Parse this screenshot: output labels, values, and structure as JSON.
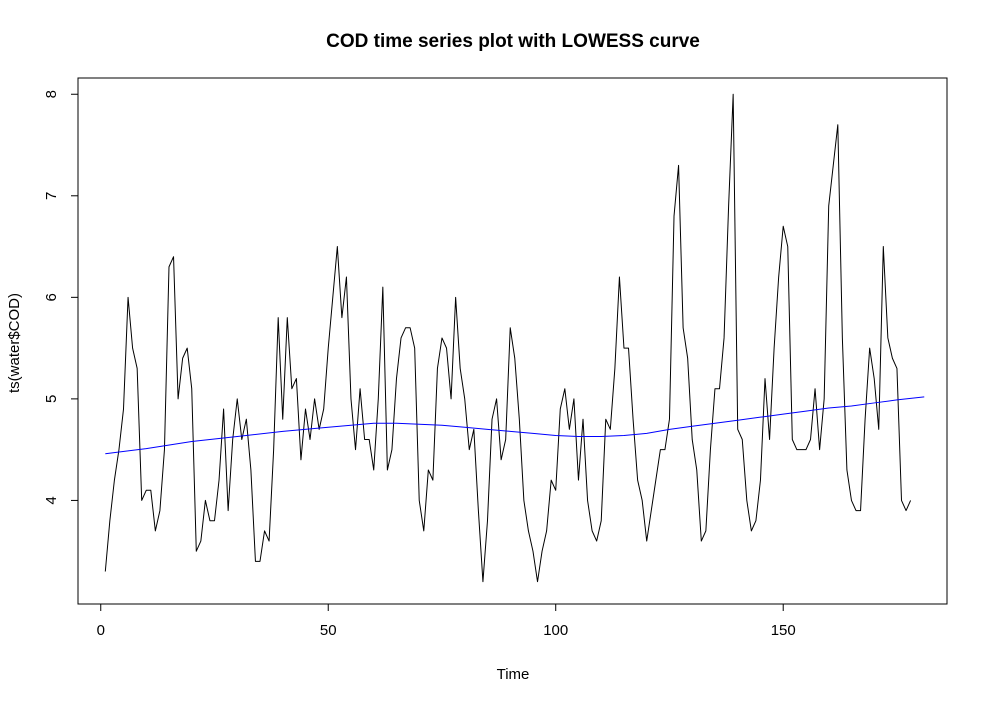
{
  "chart_data": {
    "type": "line",
    "title": "COD time series plot with LOWESS curve",
    "xlabel": "Time",
    "ylabel": "ts(water$COD)",
    "xlim": [
      -5,
      186
    ],
    "ylim": [
      2.98,
      8.16
    ],
    "x_ticks": [
      0,
      50,
      100,
      150
    ],
    "y_ticks": [
      4,
      5,
      6,
      7,
      8
    ],
    "x_tick_labels": [
      "0",
      "50",
      "100",
      "150"
    ],
    "y_tick_labels": [
      "4",
      "5",
      "6",
      "7",
      "8"
    ],
    "grid": false,
    "legend": "none",
    "series": [
      {
        "color": "#000000",
        "x_start": 1,
        "x_step": 1,
        "values": [
          3.3,
          3.8,
          4.2,
          4.5,
          4.9,
          6.0,
          5.5,
          5.3,
          4.0,
          4.1,
          4.1,
          3.7,
          3.9,
          4.5,
          6.3,
          6.4,
          5.0,
          5.4,
          5.5,
          5.1,
          3.5,
          3.6,
          4.0,
          3.8,
          3.8,
          4.2,
          4.9,
          3.9,
          4.6,
          5.0,
          4.6,
          4.8,
          4.3,
          3.4,
          3.4,
          3.7,
          3.6,
          4.5,
          5.8,
          4.8,
          5.8,
          5.1,
          5.2,
          4.4,
          4.9,
          4.6,
          5.0,
          4.7,
          4.9,
          5.5,
          6.0,
          6.5,
          5.8,
          6.2,
          5.0,
          4.5,
          5.1,
          4.6,
          4.6,
          4.3,
          5.0,
          6.1,
          4.3,
          4.5,
          5.2,
          5.6,
          5.7,
          5.7,
          5.5,
          4.0,
          3.7,
          4.3,
          4.2,
          5.3,
          5.6,
          5.5,
          5.0,
          6.0,
          5.3,
          5.0,
          4.5,
          4.7,
          3.9,
          3.2,
          3.8,
          4.8,
          5.0,
          4.4,
          4.6,
          5.7,
          5.4,
          4.8,
          4.0,
          3.7,
          3.5,
          3.2,
          3.5,
          3.7,
          4.2,
          4.1,
          4.9,
          5.1,
          4.7,
          5.0,
          4.2,
          4.8,
          4.0,
          3.7,
          3.6,
          3.8,
          4.8,
          4.7,
          5.3,
          6.2,
          5.5,
          5.5,
          4.8,
          4.2,
          4.0,
          3.6,
          3.9,
          4.2,
          4.5,
          4.5,
          4.8,
          6.8,
          7.3,
          5.7,
          5.4,
          4.6,
          4.3,
          3.6,
          3.7,
          4.5,
          5.1,
          5.1,
          5.6,
          6.9,
          8.0,
          4.7,
          4.6,
          4.0,
          3.7,
          3.8,
          4.2,
          5.2,
          4.6,
          5.5,
          6.2,
          6.7,
          6.5,
          4.6,
          4.5,
          4.5,
          4.5,
          4.6,
          5.1,
          4.5,
          5.0,
          6.9,
          7.3,
          7.7,
          5.6,
          4.3,
          4.0,
          3.9,
          3.9,
          4.8,
          5.5,
          5.2,
          4.7,
          6.5,
          5.6,
          5.4,
          5.3,
          4.0,
          3.9,
          4.0
        ]
      },
      {
        "color": "#0000ff",
        "x": [
          1,
          10,
          20,
          30,
          40,
          50,
          55,
          60,
          65,
          70,
          75,
          80,
          85,
          90,
          95,
          100,
          105,
          110,
          115,
          120,
          125,
          130,
          135,
          140,
          145,
          150,
          155,
          160,
          165,
          170,
          175,
          181
        ],
        "values": [
          4.46,
          4.51,
          4.58,
          4.63,
          4.68,
          4.72,
          4.74,
          4.76,
          4.76,
          4.75,
          4.74,
          4.72,
          4.7,
          4.68,
          4.66,
          4.64,
          4.63,
          4.63,
          4.64,
          4.66,
          4.7,
          4.73,
          4.76,
          4.79,
          4.82,
          4.85,
          4.88,
          4.91,
          4.93,
          4.96,
          4.99,
          5.02
        ]
      }
    ]
  }
}
